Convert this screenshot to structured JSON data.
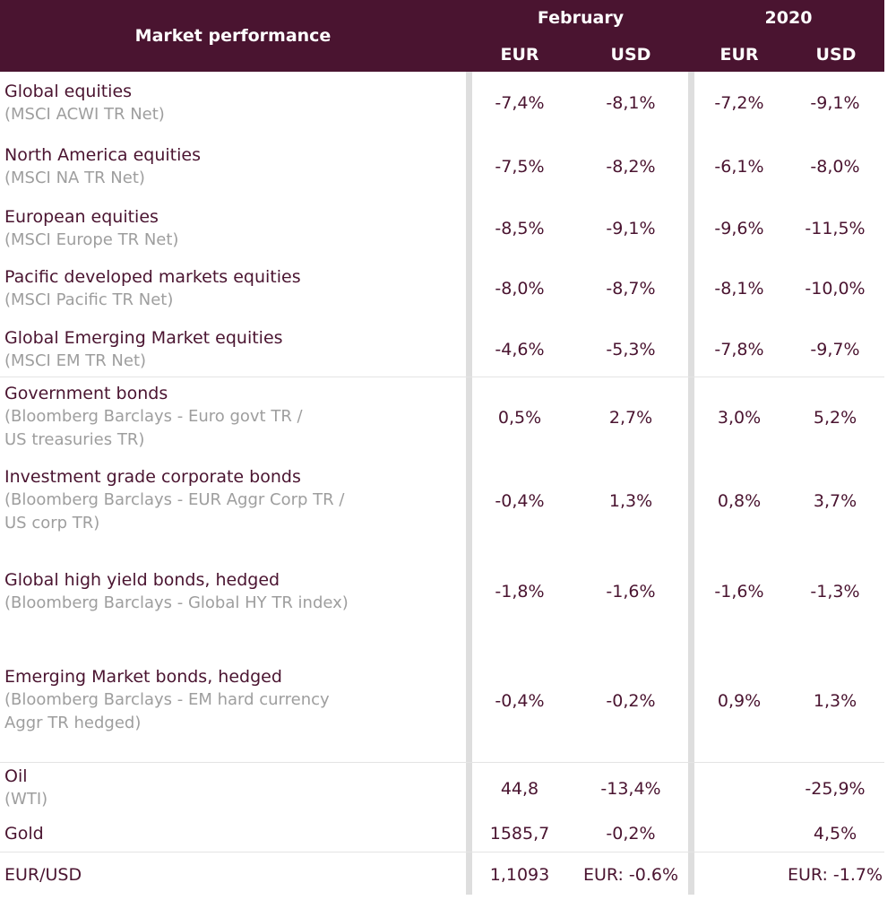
{
  "header": {
    "title": "Market performance",
    "february": "February",
    "year": "2020",
    "eur1": "EUR",
    "usd1": "USD",
    "eur2": "EUR",
    "usd2": "USD"
  },
  "rows": [
    {
      "label": "Global equities",
      "sub": "(MSCI ACWI TR Net)",
      "feb_eur": "-7,4%",
      "feb_usd": "-8,1%",
      "y_eur": "-7,2%",
      "y_usd": "-9,1%"
    },
    {
      "label": "North America equities",
      "sub": "(MSCI NA TR Net)",
      "feb_eur": "-7,5%",
      "feb_usd": "-8,2%",
      "y_eur": "-6,1%",
      "y_usd": "-8,0%"
    },
    {
      "label": "European equities",
      "sub": "(MSCI Europe TR Net)",
      "feb_eur": "-8,5%",
      "feb_usd": "-9,1%",
      "y_eur": "-9,6%",
      "y_usd": "-11,5%"
    },
    {
      "label": "Pacific developed markets equities",
      "sub": "(MSCI Pacific TR Net)",
      "feb_eur": "-8,0%",
      "feb_usd": "-8,7%",
      "y_eur": "-8,1%",
      "y_usd": "-10,0%"
    },
    {
      "label": "Global Emerging Market equities",
      "sub": "(MSCI EM TR Net)",
      "feb_eur": "-4,6%",
      "feb_usd": "-5,3%",
      "y_eur": "-7,8%",
      "y_usd": "-9,7%"
    },
    {
      "label": "Government bonds",
      "sub": "(Bloomberg Barclays - Euro govt TR /\nUS treasuries TR)",
      "feb_eur": "0,5%",
      "feb_usd": "2,7%",
      "y_eur": "3,0%",
      "y_usd": "5,2%"
    },
    {
      "label": "Investment grade corporate bonds",
      "sub": "(Bloomberg Barclays - EUR Aggr Corp TR /\nUS corp TR)",
      "feb_eur": "-0,4%",
      "feb_usd": "1,3%",
      "y_eur": "0,8%",
      "y_usd": "3,7%"
    },
    {
      "label": "Global high yield bonds, hedged",
      "sub": "(Bloomberg Barclays - Global HY TR index)",
      "feb_eur": "-1,8%",
      "feb_usd": "-1,6%",
      "y_eur": "-1,6%",
      "y_usd": "-1,3%"
    },
    {
      "label": "Emerging Market bonds, hedged",
      "sub": "(Bloomberg Barclays - EM hard currency\nAggr TR hedged)",
      "feb_eur": "-0,4%",
      "feb_usd": "-0,2%",
      "y_eur": "0,9%",
      "y_usd": "1,3%"
    },
    {
      "label": "Oil",
      "sub": "(WTI)",
      "feb_eur": "44,8",
      "feb_usd": "-13,4%",
      "y_eur": "",
      "y_usd": "-25,9%"
    },
    {
      "label": "Gold",
      "sub": "",
      "feb_eur": "1585,7",
      "feb_usd": "-0,2%",
      "y_eur": "",
      "y_usd": "4,5%"
    },
    {
      "label": "EUR/USD",
      "sub": "",
      "feb_eur": "1,1093",
      "feb_usd": "EUR: -0.6%",
      "y_eur": "",
      "y_usd": "EUR: -1.7%"
    }
  ]
}
